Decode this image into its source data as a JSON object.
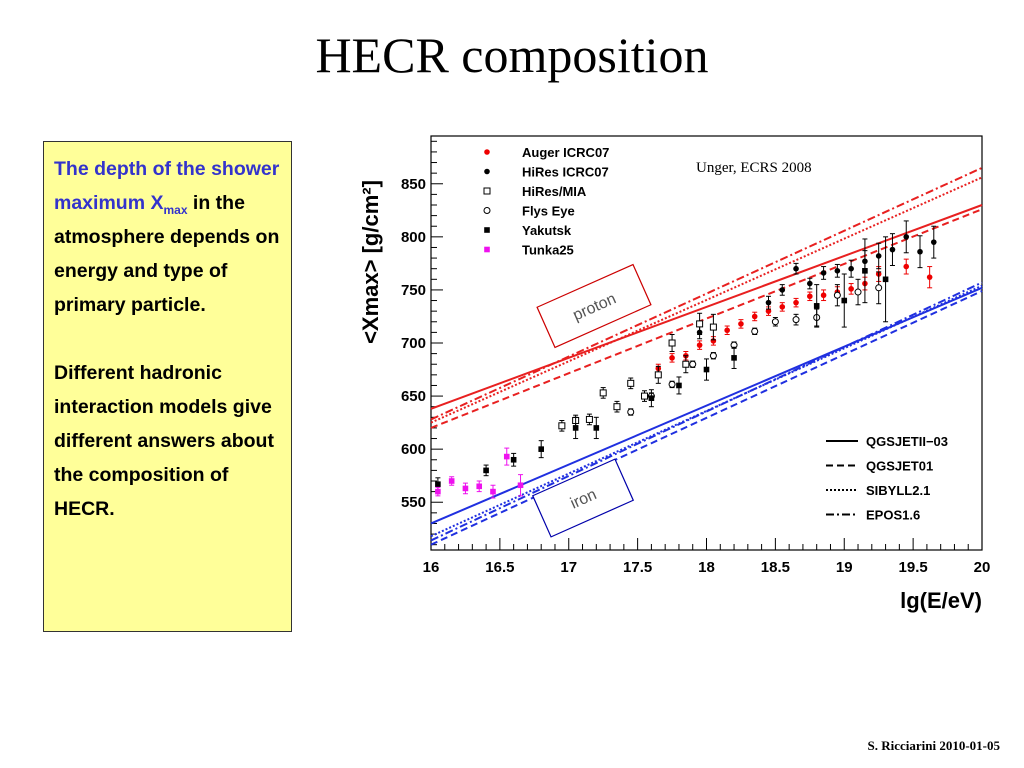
{
  "slide": {
    "title": "HECR composition",
    "footer": "S. Ricciarini 2010-01-05"
  },
  "textbox": {
    "para1_blue": "The depth of the shower maximum X",
    "para1_sub": "max",
    "para1_rest": " in the atmosphere depends on energy and type of primary particle.",
    "para2": "Different hadronic interaction models give different answers about the composition of HECR."
  },
  "chart_data": {
    "type": "scatter",
    "title": "",
    "annotation": "Unger, ECRS 2008",
    "xlabel": "lg(E/eV)",
    "ylabel": "<Xmax> [g/cm²]",
    "xlim": [
      16,
      20
    ],
    "ylim": [
      505,
      895
    ],
    "x_ticks": [
      "16",
      "16.5",
      "17",
      "17.5",
      "18",
      "18.5",
      "19",
      "19.5",
      "20"
    ],
    "y_ticks": [
      "550",
      "600",
      "650",
      "700",
      "750",
      "800",
      "850"
    ],
    "boxes": [
      {
        "label": "proton",
        "color": "#cc0000"
      },
      {
        "label": "iron",
        "color": "#0000aa"
      }
    ],
    "colors": {
      "proton": "#e82020",
      "iron": "#2030e0",
      "auger": "#ee0000",
      "tunka": "#ee11ee",
      "black": "#000000"
    },
    "legend_data": [
      {
        "name": "Auger ICRC07",
        "marker": "dot",
        "color": "#ee0000"
      },
      {
        "name": "HiRes ICRC07",
        "marker": "dot",
        "color": "#000000"
      },
      {
        "name": "HiRes/MIA",
        "marker": "open-square",
        "color": "#000000"
      },
      {
        "name": "Flys Eye",
        "marker": "open-circle",
        "color": "#000000"
      },
      {
        "name": "Yakutsk",
        "marker": "square",
        "color": "#000000"
      },
      {
        "name": "Tunka25",
        "marker": "square",
        "color": "#ee11ee"
      }
    ],
    "legend_models": [
      {
        "name": "QGSJETII−03",
        "dash": "solid"
      },
      {
        "name": "QGSJET01",
        "dash": "dashed"
      },
      {
        "name": "SIBYLL2.1",
        "dash": "dotted"
      },
      {
        "name": "EPOS1.6",
        "dash": "dashdot"
      }
    ],
    "model_lines": [
      {
        "model": "QGSJETII-03",
        "primary": "proton",
        "dash": "solid",
        "x": [
          16,
          20
        ],
        "y": [
          638,
          830
        ]
      },
      {
        "model": "QGSJET01",
        "primary": "proton",
        "dash": "dashed",
        "x": [
          16,
          20
        ],
        "y": [
          620,
          826
        ]
      },
      {
        "model": "SIBYLL2.1",
        "primary": "proton",
        "dash": "dotted",
        "x": [
          16,
          20
        ],
        "y": [
          625,
          856
        ]
      },
      {
        "model": "EPOS1.6",
        "primary": "proton",
        "dash": "dashdot",
        "x": [
          16,
          20
        ],
        "y": [
          628,
          865
        ]
      },
      {
        "model": "QGSJETII-03",
        "primary": "iron",
        "dash": "solid",
        "x": [
          16,
          20
        ],
        "y": [
          530,
          752
        ]
      },
      {
        "model": "QGSJET01",
        "primary": "iron",
        "dash": "dashed",
        "x": [
          16,
          20
        ],
        "y": [
          510,
          749
        ]
      },
      {
        "model": "SIBYLL2.1",
        "primary": "iron",
        "dash": "dotted",
        "x": [
          16,
          20
        ],
        "y": [
          518,
          754
        ]
      },
      {
        "model": "EPOS1.6",
        "primary": "iron",
        "dash": "dashdot",
        "x": [
          16,
          20
        ],
        "y": [
          514,
          757
        ]
      }
    ],
    "series": [
      {
        "name": "Auger ICRC07",
        "marker": "dot",
        "color": "#ee0000",
        "x": [
          17.65,
          17.75,
          17.85,
          17.95,
          18.05,
          18.15,
          18.25,
          18.35,
          18.45,
          18.55,
          18.65,
          18.75,
          18.85,
          18.95,
          19.05,
          19.15,
          19.25,
          19.45,
          19.62
        ],
        "y": [
          676,
          686,
          688,
          698,
          702,
          712,
          718,
          725,
          730,
          734,
          738,
          744,
          745,
          748,
          751,
          756,
          765,
          772,
          762
        ],
        "err": [
          4,
          4,
          4,
          4,
          4,
          4,
          4,
          4,
          4,
          4,
          4,
          4,
          5,
          5,
          5,
          6,
          7,
          7,
          10
        ]
      },
      {
        "name": "HiRes ICRC07",
        "marker": "dot",
        "color": "#000000",
        "x": [
          17.95,
          18.45,
          18.55,
          18.65,
          18.75,
          18.85,
          18.95,
          19.05,
          19.15,
          19.25,
          19.35,
          19.45,
          19.55,
          19.65
        ],
        "y": [
          710,
          738,
          750,
          770,
          756,
          766,
          768,
          770,
          777,
          782,
          788,
          800,
          786,
          795
        ],
        "err": [
          6,
          6,
          5,
          5,
          5,
          6,
          6,
          8,
          10,
          12,
          15,
          15,
          15,
          15
        ]
      },
      {
        "name": "HiRes/MIA",
        "marker": "open-square",
        "color": "#000000",
        "x": [
          16.95,
          17.05,
          17.15,
          17.25,
          17.35,
          17.45,
          17.55,
          17.65,
          17.75,
          17.85,
          17.95,
          18.05
        ],
        "y": [
          622,
          627,
          628,
          653,
          640,
          662,
          650,
          670,
          700,
          680,
          718,
          715
        ],
        "err": [
          5,
          5,
          5,
          5,
          5,
          5,
          5,
          8,
          8,
          8,
          10,
          12
        ]
      },
      {
        "name": "Flys Eye",
        "marker": "open-circle",
        "color": "#000000",
        "x": [
          17.45,
          17.6,
          17.75,
          17.9,
          18.05,
          18.2,
          18.35,
          18.5,
          18.65,
          18.8,
          18.95,
          19.1,
          19.25
        ],
        "y": [
          635,
          650,
          661,
          680,
          688,
          698,
          711,
          720,
          722,
          724,
          745,
          748,
          752
        ],
        "err": [
          3,
          3,
          3,
          3,
          3,
          3,
          3,
          4,
          5,
          8,
          10,
          12,
          15
        ]
      },
      {
        "name": "Yakutsk",
        "marker": "square",
        "color": "#000000",
        "x": [
          16.05,
          16.4,
          16.6,
          16.8,
          17.05,
          17.2,
          17.6,
          17.8,
          18.0,
          18.2,
          18.8,
          19.0,
          19.15,
          19.3
        ],
        "y": [
          567,
          580,
          590,
          600,
          620,
          620,
          648,
          660,
          675,
          686,
          735,
          740,
          768,
          760
        ],
        "err": [
          6,
          5,
          6,
          8,
          10,
          10,
          8,
          8,
          10,
          10,
          20,
          25,
          30,
          40
        ]
      },
      {
        "name": "Tunka25",
        "marker": "square",
        "color": "#ee11ee",
        "x": [
          16.05,
          16.15,
          16.25,
          16.35,
          16.45,
          16.55,
          16.65
        ],
        "y": [
          560,
          570,
          563,
          565,
          560,
          593,
          566
        ],
        "err": [
          4,
          4,
          5,
          5,
          6,
          8,
          10
        ]
      }
    ]
  }
}
